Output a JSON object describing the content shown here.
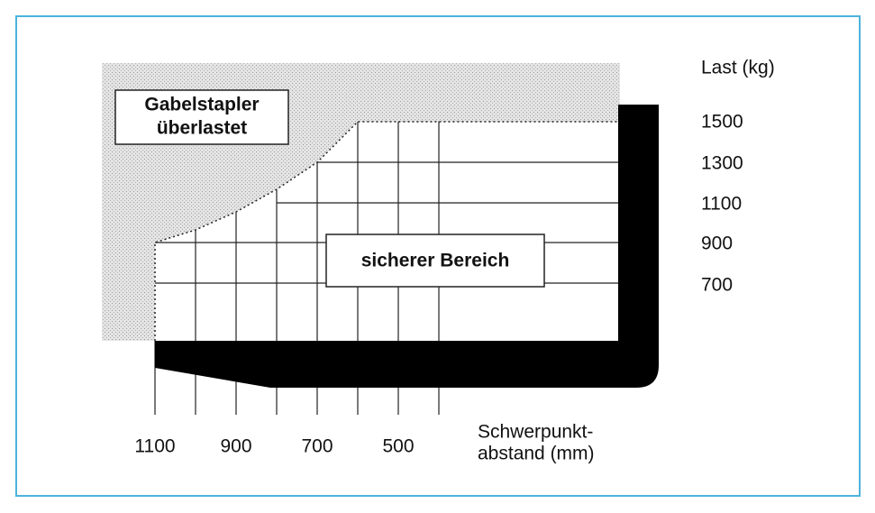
{
  "overload_box": {
    "line1": "Gabelstapler",
    "line2": "überlastet"
  },
  "safe_box": "sicherer Bereich",
  "y_axis": {
    "title": "Last (kg)",
    "labels": [
      1500,
      1300,
      1100,
      900,
      700
    ]
  },
  "x_axis": {
    "title_line1": "Schwerpunkt-",
    "title_line2": "abstand (mm)",
    "labels": [
      1100,
      900,
      700,
      500
    ]
  }
}
